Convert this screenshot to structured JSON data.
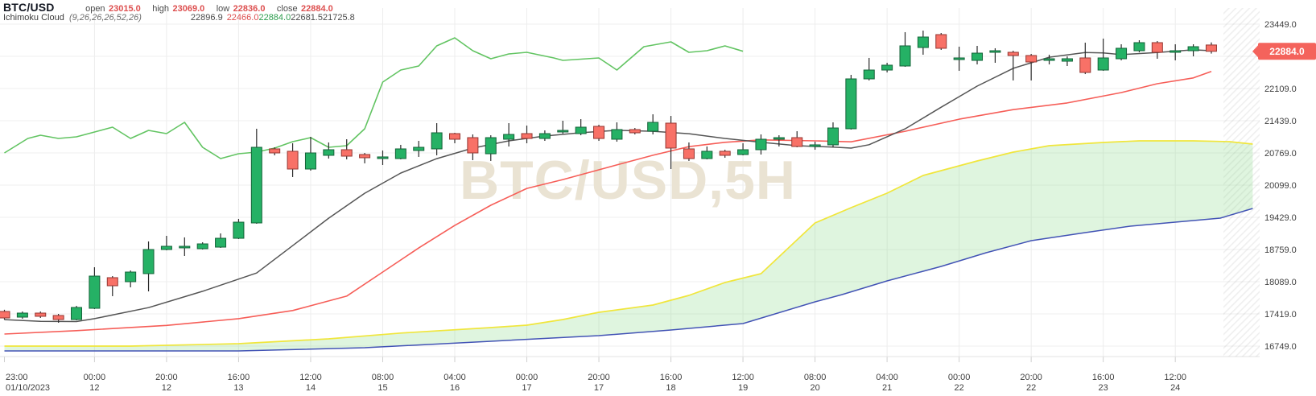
{
  "header": {
    "symbol": "BTC/USD",
    "ohlc": {
      "open_label": "open",
      "open": "23015.0",
      "high_label": "high",
      "high": "23069.0",
      "low_label": "low",
      "low": "22836.0",
      "close_label": "close",
      "close": "22884.0",
      "value_color": "#dd4f4f"
    },
    "indicator": {
      "name": "Ichimoku Cloud",
      "params": "(9,26,26,26,52,26)",
      "values": [
        {
          "text": "22896.9",
          "color": "#4a4a4a"
        },
        {
          "text": "22466.0",
          "color": "#dd4f4f"
        },
        {
          "text": "22884.0",
          "color": "#2e9e4f"
        },
        {
          "text": "22681.5",
          "color": "#4a4a4a"
        },
        {
          "text": "21725.8",
          "color": "#4a4a4a"
        }
      ]
    }
  },
  "price_tag": {
    "value": "22884.0"
  },
  "watermark": "BTC/USD,5H",
  "chart_data": {
    "type": "candlestick",
    "symbol": "BTC/USD",
    "timeframe": "5H",
    "indicator": "Ichimoku Cloud (9,26,26,26,52,26)",
    "y_axis": {
      "min": 16749,
      "max": 23449,
      "ticks": [
        {
          "price": 23449,
          "label": "23449.0"
        },
        {
          "price": 22779,
          "label": null
        },
        {
          "price": 22109,
          "label": "22109.0"
        },
        {
          "price": 21439,
          "label": "21439.0"
        },
        {
          "price": 20769,
          "label": "20769.0"
        },
        {
          "price": 20099,
          "label": "20099.0"
        },
        {
          "price": 19429,
          "label": "19429.0"
        },
        {
          "price": 18759,
          "label": "18759.0"
        },
        {
          "price": 18089,
          "label": "18089.0"
        },
        {
          "price": 17419,
          "label": "17419.0"
        },
        {
          "price": 16749,
          "label": "16749.0"
        }
      ],
      "current_price": 22884.0
    },
    "x_axis": {
      "labels": [
        {
          "i": 0,
          "time": "23:00",
          "date": "01/10/2023"
        },
        {
          "i": 5,
          "time": "00:00",
          "date": "12"
        },
        {
          "i": 9,
          "time": "20:00",
          "date": "12"
        },
        {
          "i": 13,
          "time": "16:00",
          "date": "13"
        },
        {
          "i": 17,
          "time": "12:00",
          "date": "14"
        },
        {
          "i": 21,
          "time": "08:00",
          "date": "15"
        },
        {
          "i": 25,
          "time": "04:00",
          "date": "16"
        },
        {
          "i": 29,
          "time": "00:00",
          "date": "17"
        },
        {
          "i": 33,
          "time": "20:00",
          "date": "17"
        },
        {
          "i": 37,
          "time": "16:00",
          "date": "18"
        },
        {
          "i": 41,
          "time": "12:00",
          "date": "19"
        },
        {
          "i": 45,
          "time": "08:00",
          "date": "20"
        },
        {
          "i": 49,
          "time": "04:00",
          "date": "21"
        },
        {
          "i": 53,
          "time": "00:00",
          "date": "22"
        },
        {
          "i": 57,
          "time": "20:00",
          "date": "22"
        },
        {
          "i": 61,
          "time": "16:00",
          "date": "23"
        },
        {
          "i": 65,
          "time": "12:00",
          "date": "24"
        }
      ]
    },
    "candles": [
      [
        17470,
        17505,
        17300,
        17335
      ],
      [
        17352,
        17469,
        17318,
        17436
      ],
      [
        17436,
        17469,
        17335,
        17369
      ],
      [
        17386,
        17419,
        17235,
        17302
      ],
      [
        17302,
        17587,
        17285,
        17553
      ],
      [
        17536,
        18390,
        17520,
        18206
      ],
      [
        18173,
        18206,
        17788,
        18005
      ],
      [
        18089,
        18323,
        17972,
        18290
      ],
      [
        18257,
        18927,
        17888,
        18759
      ],
      [
        18759,
        19044,
        18742,
        18826
      ],
      [
        18793,
        19011,
        18625,
        18826
      ],
      [
        18776,
        18910,
        18759,
        18876
      ],
      [
        18809,
        19094,
        18793,
        18993
      ],
      [
        18993,
        19395,
        18977,
        19328
      ],
      [
        19312,
        21272,
        19295,
        20886
      ],
      [
        20853,
        20886,
        20719,
        20769
      ],
      [
        20803,
        20970,
        20267,
        20434
      ],
      [
        20434,
        21104,
        20401,
        20769
      ],
      [
        20719,
        20987,
        20652,
        20836
      ],
      [
        20836,
        21054,
        20635,
        20702
      ],
      [
        20736,
        20769,
        20552,
        20669
      ],
      [
        20652,
        20820,
        20518,
        20686
      ],
      [
        20652,
        20937,
        20635,
        20853
      ],
      [
        20819,
        21020,
        20686,
        20886
      ],
      [
        20853,
        21389,
        20719,
        21188
      ],
      [
        21171,
        21188,
        20970,
        21054
      ],
      [
        21087,
        21154,
        20618,
        20769
      ],
      [
        20752,
        21137,
        20602,
        21087
      ],
      [
        21054,
        21389,
        20903,
        21154
      ],
      [
        21171,
        21338,
        20970,
        21070
      ],
      [
        21070,
        21238,
        21020,
        21171
      ],
      [
        21205,
        21439,
        21171,
        21238
      ],
      [
        21171,
        21472,
        21137,
        21305
      ],
      [
        21322,
        21355,
        21020,
        21070
      ],
      [
        21054,
        21405,
        21003,
        21255
      ],
      [
        21255,
        21288,
        21154,
        21188
      ],
      [
        21221,
        21573,
        21154,
        21405
      ],
      [
        21389,
        21539,
        20434,
        20870
      ],
      [
        20853,
        20987,
        20602,
        20652
      ],
      [
        20652,
        20903,
        20635,
        20803
      ],
      [
        20803,
        20836,
        20669,
        20719
      ],
      [
        20736,
        20970,
        20719,
        20836
      ],
      [
        20836,
        21154,
        20736,
        21054
      ],
      [
        21054,
        21137,
        20903,
        21087
      ],
      [
        21087,
        21221,
        20886,
        20903
      ],
      [
        20903,
        21003,
        20836,
        20937
      ],
      [
        20937,
        21405,
        20886,
        21288
      ],
      [
        21272,
        22394,
        21255,
        22310
      ],
      [
        22310,
        22746,
        22277,
        22494
      ],
      [
        22494,
        22645,
        22444,
        22595
      ],
      [
        22578,
        23282,
        22561,
        22997
      ],
      [
        22963,
        23315,
        22813,
        23181
      ],
      [
        23231,
        23265,
        22913,
        22947
      ],
      [
        22712,
        22980,
        22478,
        22746
      ],
      [
        22695,
        22997,
        22611,
        22846
      ],
      [
        22863,
        22947,
        22645,
        22896
      ],
      [
        22863,
        22896,
        22277,
        22796
      ],
      [
        22796,
        22829,
        22277,
        22662
      ],
      [
        22695,
        22813,
        22611,
        22729
      ],
      [
        22678,
        22779,
        22578,
        22729
      ],
      [
        22746,
        23064,
        22410,
        22444
      ],
      [
        22494,
        23148,
        22478,
        22746
      ],
      [
        22729,
        23030,
        22695,
        22947
      ],
      [
        22896,
        23114,
        22863,
        23064
      ],
      [
        23064,
        23097,
        22729,
        22863
      ],
      [
        22863,
        23030,
        22695,
        22896
      ],
      [
        22896,
        23030,
        22779,
        22980
      ],
      [
        23015,
        23069,
        22836,
        22884
      ]
    ],
    "ichimoku": {
      "tenkan": [
        [
          0,
          17300
        ],
        [
          2,
          17265
        ],
        [
          4,
          17260
        ],
        [
          5,
          17320
        ],
        [
          8,
          17550
        ],
        [
          11,
          17890
        ],
        [
          14,
          18270
        ],
        [
          16,
          18840
        ],
        [
          18,
          19410
        ],
        [
          20,
          19930
        ],
        [
          22,
          20350
        ],
        [
          24,
          20650
        ],
        [
          26,
          20870
        ],
        [
          28,
          21020
        ],
        [
          30,
          21120
        ],
        [
          32,
          21190
        ],
        [
          34,
          21240
        ],
        [
          36,
          21220
        ],
        [
          38,
          21170
        ],
        [
          40,
          21070
        ],
        [
          42,
          20990
        ],
        [
          44,
          20920
        ],
        [
          46,
          20890
        ],
        [
          47,
          20870
        ],
        [
          48,
          20940
        ],
        [
          50,
          21270
        ],
        [
          52,
          21720
        ],
        [
          54,
          22160
        ],
        [
          56,
          22530
        ],
        [
          58,
          22760
        ],
        [
          60,
          22860
        ],
        [
          61,
          22850
        ],
        [
          62,
          22815
        ],
        [
          64,
          22860
        ],
        [
          66,
          22915
        ],
        [
          67,
          22897
        ]
      ],
      "kijun": [
        [
          0,
          17000
        ],
        [
          4,
          17070
        ],
        [
          9,
          17180
        ],
        [
          13,
          17320
        ],
        [
          16,
          17490
        ],
        [
          19,
          17790
        ],
        [
          21,
          18290
        ],
        [
          23,
          18790
        ],
        [
          25,
          19260
        ],
        [
          27,
          19680
        ],
        [
          29,
          20030
        ],
        [
          31,
          20215
        ],
        [
          34,
          20520
        ],
        [
          36,
          20720
        ],
        [
          38,
          20900
        ],
        [
          40,
          20990
        ],
        [
          42,
          21040
        ],
        [
          45,
          21020
        ],
        [
          47,
          21000
        ],
        [
          50,
          21220
        ],
        [
          53,
          21470
        ],
        [
          56,
          21670
        ],
        [
          59,
          21810
        ],
        [
          62,
          22025
        ],
        [
          64,
          22210
        ],
        [
          66,
          22330
        ],
        [
          67,
          22466
        ]
      ],
      "chikou": [
        [
          0,
          20769
        ],
        [
          1.3,
          21070
        ],
        [
          2,
          21137
        ],
        [
          3,
          21070
        ],
        [
          4,
          21104
        ],
        [
          6,
          21305
        ],
        [
          7,
          21070
        ],
        [
          8,
          21238
        ],
        [
          9,
          21171
        ],
        [
          10,
          21405
        ],
        [
          11,
          20886
        ],
        [
          12,
          20652
        ],
        [
          13,
          20752
        ],
        [
          14,
          20786
        ],
        [
          15,
          20870
        ],
        [
          16,
          21003
        ],
        [
          17,
          21087
        ],
        [
          18,
          20886
        ],
        [
          19,
          20920
        ],
        [
          20,
          21272
        ],
        [
          21,
          22243
        ],
        [
          22,
          22494
        ],
        [
          23,
          22578
        ],
        [
          24,
          22997
        ],
        [
          25,
          23164
        ],
        [
          26,
          22896
        ],
        [
          27,
          22729
        ],
        [
          28,
          22829
        ],
        [
          29,
          22863
        ],
        [
          30.5,
          22746
        ],
        [
          31,
          22695
        ],
        [
          33,
          22746
        ],
        [
          34,
          22494
        ],
        [
          35.5,
          22980
        ],
        [
          37,
          23080
        ],
        [
          38,
          22863
        ],
        [
          39,
          22896
        ],
        [
          40,
          22997
        ],
        [
          41,
          22884
        ]
      ],
      "senkou_a": [
        [
          0,
          16749
        ],
        [
          7,
          16749
        ],
        [
          13,
          16800
        ],
        [
          18,
          16900
        ],
        [
          22,
          17020
        ],
        [
          27,
          17134
        ],
        [
          29,
          17184
        ],
        [
          31,
          17302
        ],
        [
          33,
          17452
        ],
        [
          36,
          17603
        ],
        [
          38,
          17804
        ],
        [
          40,
          18072
        ],
        [
          42,
          18256
        ],
        [
          45,
          19312
        ],
        [
          47,
          19630
        ],
        [
          49,
          19932
        ],
        [
          51,
          20300
        ],
        [
          54,
          20602
        ],
        [
          56,
          20786
        ],
        [
          58,
          20920
        ],
        [
          61,
          20987
        ],
        [
          63,
          21020
        ],
        [
          66,
          21020
        ],
        [
          68,
          21003
        ],
        [
          69.3,
          20953
        ]
      ],
      "senkou_b": [
        [
          0,
          16648
        ],
        [
          13,
          16648
        ],
        [
          20,
          16715
        ],
        [
          27,
          16849
        ],
        [
          33,
          16967
        ],
        [
          37,
          17084
        ],
        [
          41,
          17218
        ],
        [
          45,
          17670
        ],
        [
          46.5,
          17821
        ],
        [
          49,
          18106
        ],
        [
          52,
          18407
        ],
        [
          54.5,
          18692
        ],
        [
          57,
          18943
        ],
        [
          60,
          19110
        ],
        [
          62.5,
          19245
        ],
        [
          65,
          19328
        ],
        [
          67.5,
          19412
        ],
        [
          69.3,
          19613
        ]
      ]
    },
    "colors": {
      "up": "#25b165",
      "up_border": "#156339",
      "down": "#f87167",
      "down_border": "#943732",
      "wick": "#2a2a2a",
      "tenkan": "#555555",
      "kijun": "#f65e58",
      "chikou": "#62c462",
      "senkou_a": "#f0e63c",
      "senkou_b": "#4253b5",
      "cloud_fill": "rgba(128,217,128,0.25)",
      "grid": "#efefef",
      "axis_text": "#3f3f3f",
      "tag_bg": "#f4635c",
      "tag_text": "#ffffff",
      "watermark": "#eae3d3"
    }
  }
}
